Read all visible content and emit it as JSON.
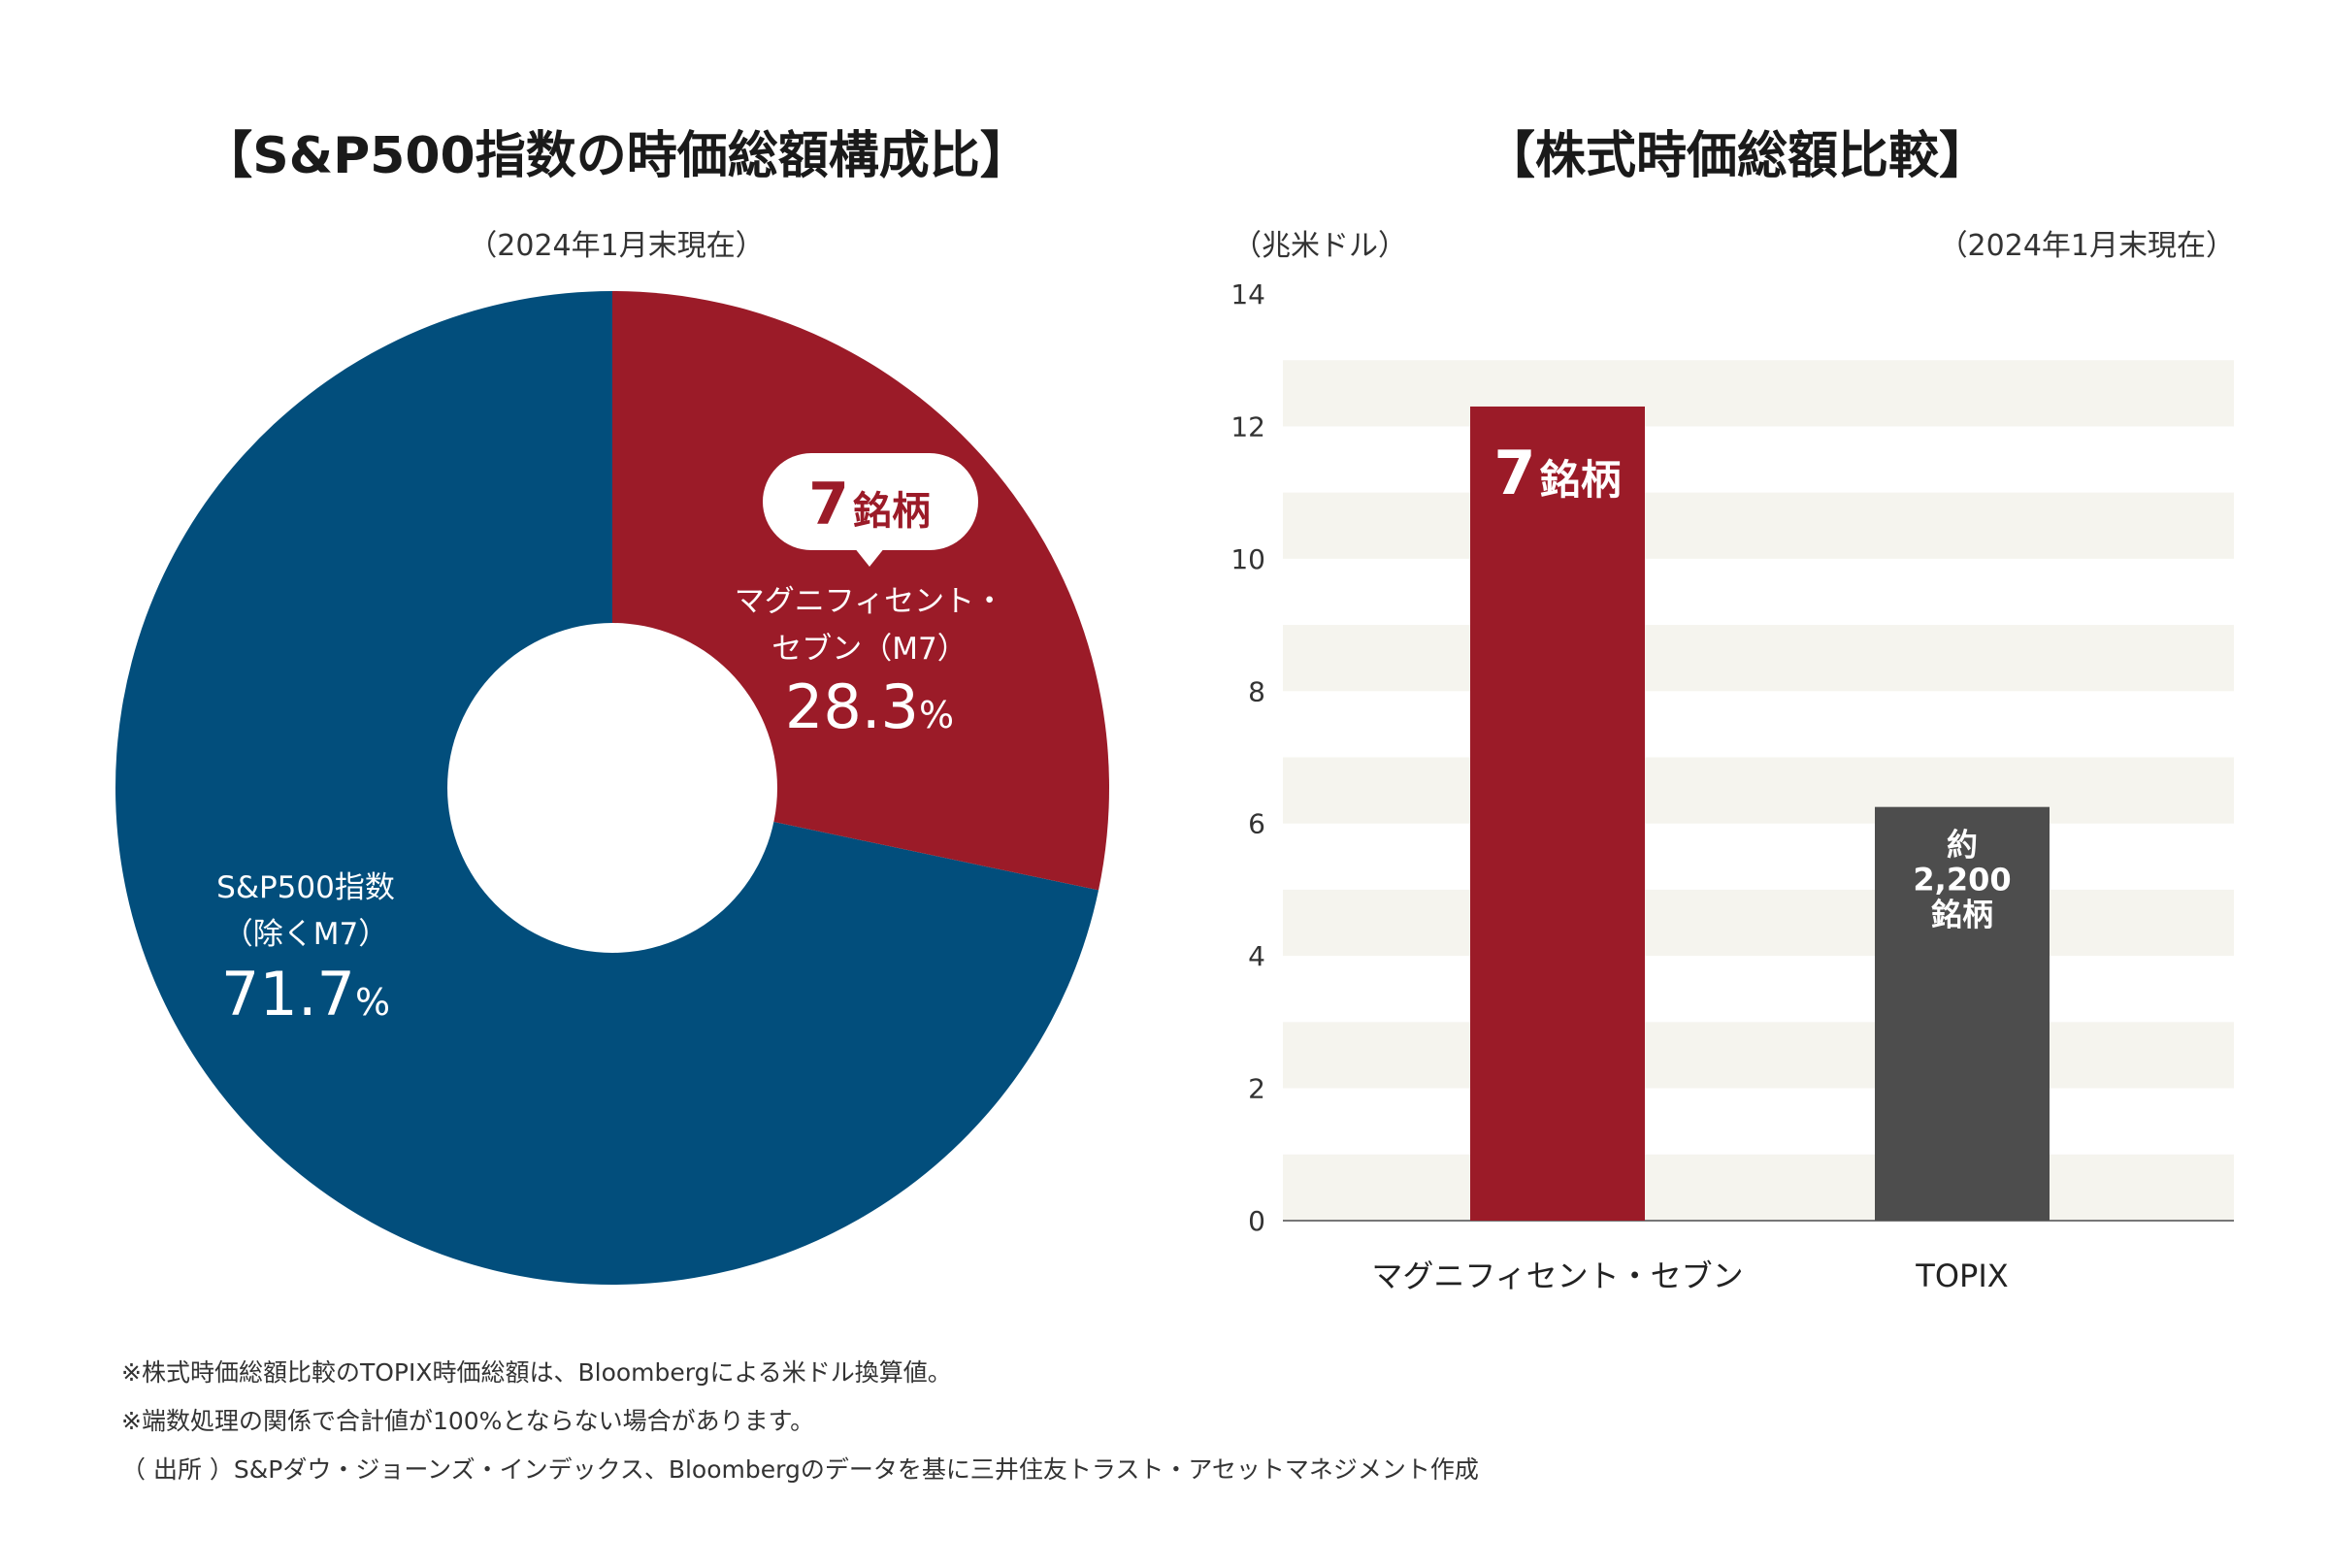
{
  "footnotes": [
    "※株式時価総額比較のTOPIX時価総額は、Bloombergによる米ドル換算値。",
    "※端数処理の関係で合計値が100%とならない場合があります。",
    "（ 出所 ）S&Pダウ・ジョーンズ・インデックス、Bloombergのデータを基に三井住友トラスト・アセットマネジメント作成"
  ],
  "chart_data": [
    {
      "type": "pie",
      "title": "【S&P500指数の時価総額構成比】",
      "subtitle": "（2024年1月末現在）",
      "slices": [
        {
          "label_lines": [
            "マグニフィセント・",
            "セブン（M7）"
          ],
          "value": 28.3,
          "value_text": "28.3",
          "unit": "%",
          "callout_number": "7",
          "callout_unit": "銘柄",
          "color": "#9b1b28"
        },
        {
          "label_lines": [
            "S&P500指数",
            "（除くM7）"
          ],
          "value": 71.7,
          "value_text": "71.7",
          "unit": "%",
          "color": "#024e7c"
        }
      ]
    },
    {
      "type": "bar",
      "title": "【株式時価総額比較】",
      "subtitle": "（2024年1月末現在）",
      "ylabel": "（兆米ドル）",
      "ylim": [
        0,
        14
      ],
      "ticks": [
        0,
        2,
        4,
        6,
        8,
        10,
        12,
        14
      ],
      "categories": [
        "マグニフィセント・セブン",
        "TOPIX"
      ],
      "values": [
        12.3,
        6.25
      ],
      "bar_colors": [
        "#9b1b28",
        "#4d4d4d"
      ],
      "bar_labels": [
        {
          "number": "7",
          "unit": "銘柄"
        },
        {
          "lines": [
            "約",
            "2,200",
            "銘柄"
          ]
        }
      ],
      "grid": "alternating horizontal bands"
    }
  ]
}
